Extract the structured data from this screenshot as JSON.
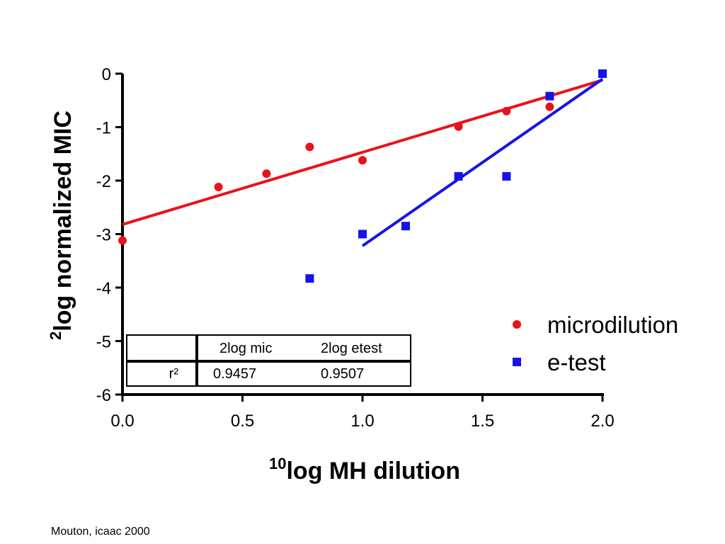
{
  "chart_data": {
    "type": "scatter",
    "xlabel_sup": "10",
    "xlabel": "log MH dilution",
    "ylabel_sup": "2",
    "ylabel": "log normalized MIC",
    "xlim": [
      0,
      2
    ],
    "ylim": [
      -6,
      0
    ],
    "x_ticks": [
      "0.0",
      "0.5",
      "1.0",
      "1.5",
      "2.0"
    ],
    "y_ticks": [
      "0",
      "-1",
      "-2",
      "-3",
      "-4",
      "-5",
      "-6"
    ],
    "grid": false,
    "legend_position": "right",
    "series": [
      {
        "name": "microdilution",
        "marker": "circle",
        "color": "#e8131b",
        "points": [
          {
            "x": 0.0,
            "y": -3.12
          },
          {
            "x": 0.4,
            "y": -2.12
          },
          {
            "x": 0.6,
            "y": -1.87
          },
          {
            "x": 0.78,
            "y": -1.37
          },
          {
            "x": 1.0,
            "y": -1.62
          },
          {
            "x": 1.4,
            "y": -0.99
          },
          {
            "x": 1.6,
            "y": -0.7
          },
          {
            "x": 1.78,
            "y": -0.62
          },
          {
            "x": 2.0,
            "y": 0.0
          }
        ],
        "fit_line": {
          "x": [
            0.0,
            2.0
          ],
          "y": [
            -2.82,
            -0.12
          ]
        }
      },
      {
        "name": "e-test",
        "marker": "square",
        "color": "#1414e6",
        "points": [
          {
            "x": 0.78,
            "y": -3.83
          },
          {
            "x": 1.0,
            "y": -3.0
          },
          {
            "x": 1.18,
            "y": -2.85
          },
          {
            "x": 1.4,
            "y": -1.92
          },
          {
            "x": 1.6,
            "y": -1.92
          },
          {
            "x": 1.78,
            "y": -0.42
          },
          {
            "x": 2.0,
            "y": 0.0
          }
        ],
        "fit_line": {
          "x": [
            1.0,
            2.0
          ],
          "y": [
            -3.22,
            -0.1
          ]
        }
      }
    ],
    "table": {
      "headers": [
        "",
        "2log mic",
        "2log etest"
      ],
      "rows": [
        [
          "r²",
          "0.9457",
          "0.9507"
        ]
      ]
    }
  },
  "credit": "Mouton, icaac 2000"
}
